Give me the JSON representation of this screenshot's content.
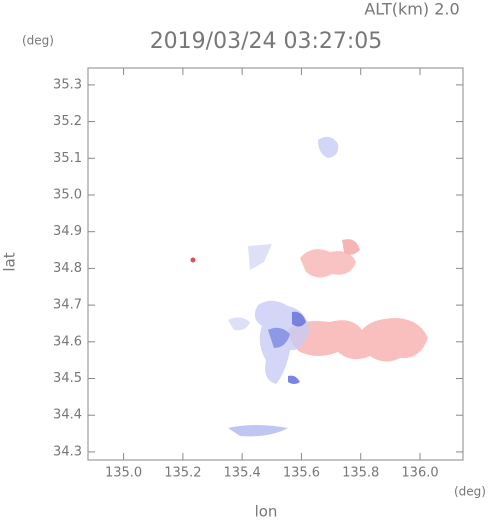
{
  "chart_data": {
    "type": "map",
    "title": "2019/03/24 03:27:05",
    "annotation": "ALT(km) 2.0",
    "y_unit": "(deg)",
    "x_unit": "(deg)",
    "x_label": "lon",
    "y_label": "lat",
    "xlim": [
      134.88,
      136.145
    ],
    "ylim": [
      34.278,
      35.346
    ],
    "xticks": [
      {
        "value": 135.0,
        "label": "135.0"
      },
      135.2,
      135.4,
      135.6,
      135.8,
      {
        "value": 136.0,
        "label": "136.0"
      }
    ],
    "yticks": [
      34.3,
      34.4,
      34.5,
      34.6,
      34.7,
      34.8,
      34.9,
      {
        "value": 35.0,
        "label": "35.0"
      },
      35.1,
      35.2,
      35.3
    ]
  }
}
